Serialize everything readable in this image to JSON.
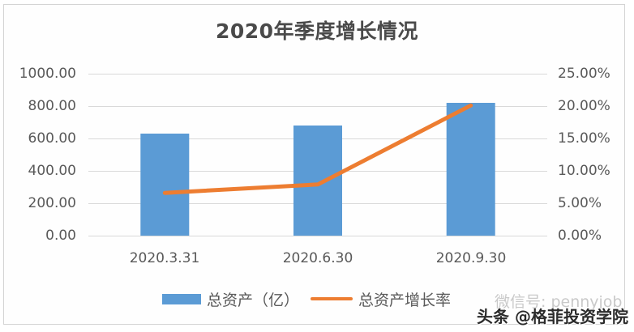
{
  "chart": {
    "title": "2020年季度增长情况",
    "left_axis_ticks": [
      "1000.00",
      "800.00",
      "600.00",
      "400.00",
      "200.00",
      "0.00"
    ],
    "right_axis_ticks": [
      "25.00%",
      "20.00%",
      "15.00%",
      "10.00%",
      "5.00%",
      "0.00%"
    ],
    "categories": [
      "2020.3.31",
      "2020.6.30",
      "2020.9.30"
    ],
    "legend": {
      "bar_label": "总资产（亿）",
      "line_label": "总资产增长率"
    },
    "colors": {
      "bar": "#5b9bd5",
      "line": "#ed7d31",
      "grid": "#d9d9d9",
      "text": "#595959"
    }
  },
  "watermark": {
    "back_text": "微信号: pennyjob",
    "front_text": "头条 @格菲投资学院"
  },
  "chart_data": {
    "type": "bar",
    "title": "2020年季度增长情况",
    "categories": [
      "2020.3.31",
      "2020.6.30",
      "2020.9.30"
    ],
    "series": [
      {
        "name": "总资产（亿）",
        "type": "bar",
        "axis": "left",
        "values": [
          630,
          680,
          820
        ]
      },
      {
        "name": "总资产增长率",
        "type": "line",
        "axis": "right",
        "values": [
          0.066,
          0.079,
          0.201
        ]
      }
    ],
    "xlabel": "",
    "ylabel": "",
    "ylim": [
      0,
      1000
    ],
    "y2lim": [
      0,
      0.25
    ],
    "yticks": [
      0,
      200,
      400,
      600,
      800,
      1000
    ],
    "y2ticks": [
      "0.00%",
      "5.00%",
      "10.00%",
      "15.00%",
      "20.00%",
      "25.00%"
    ],
    "grid": true,
    "legend_position": "bottom"
  }
}
